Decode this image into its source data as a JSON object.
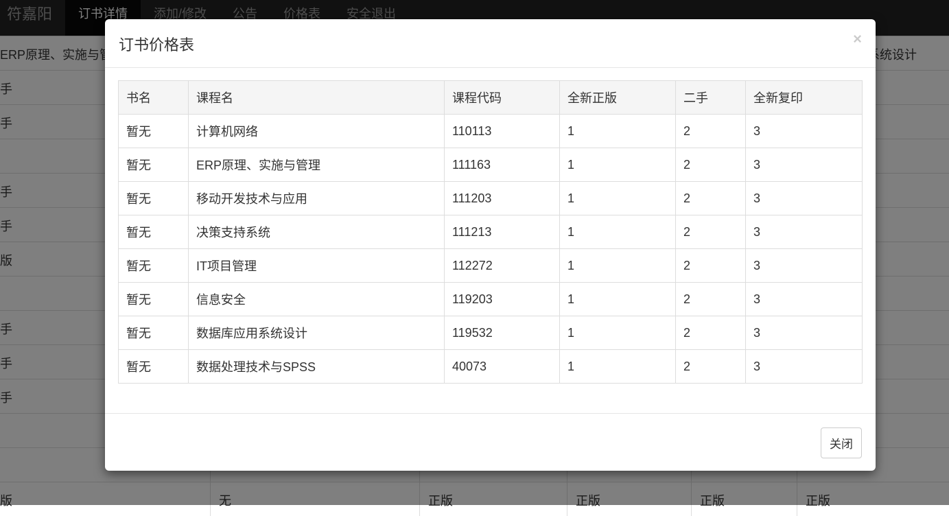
{
  "navbar": {
    "brand": "符嘉阳",
    "items": [
      "订书详情",
      "添加/修改",
      "公告",
      "价格表",
      "安全退出"
    ]
  },
  "background": {
    "header_cells": [
      "ERP原理、实施与管理",
      "",
      "",
      "",
      "",
      "数据库应用系统设计"
    ],
    "rows": [
      [
        "手"
      ],
      [
        "手"
      ],
      [
        ""
      ],
      [
        "手"
      ],
      [
        "手"
      ],
      [
        "版"
      ],
      [
        ""
      ],
      [
        "手"
      ],
      [
        "手"
      ],
      [
        "手"
      ],
      [
        ""
      ],
      [
        ""
      ],
      [
        "版",
        "无",
        "正版",
        "正版",
        "正版",
        "正版"
      ]
    ]
  },
  "modal": {
    "title": "订书价格表",
    "close_symbol": "×",
    "close_button": "关闭",
    "columns": [
      "书名",
      "课程名",
      "课程代码",
      "全新正版",
      "二手",
      "全新复印"
    ],
    "rows": [
      [
        "暂无",
        "计算机网络",
        "110113",
        "1",
        "2",
        "3"
      ],
      [
        "暂无",
        "ERP原理、实施与管理",
        "111163",
        "1",
        "2",
        "3"
      ],
      [
        "暂无",
        "移动开发技术与应用",
        "111203",
        "1",
        "2",
        "3"
      ],
      [
        "暂无",
        "决策支持系统",
        "111213",
        "1",
        "2",
        "3"
      ],
      [
        "暂无",
        "IT项目管理",
        "112272",
        "1",
        "2",
        "3"
      ],
      [
        "暂无",
        "信息安全",
        "119203",
        "1",
        "2",
        "3"
      ],
      [
        "暂无",
        "数据库应用系统设计",
        "119532",
        "1",
        "2",
        "3"
      ],
      [
        "暂无",
        "数据处理技术与SPSS",
        "40073",
        "1",
        "2",
        "3"
      ]
    ]
  }
}
